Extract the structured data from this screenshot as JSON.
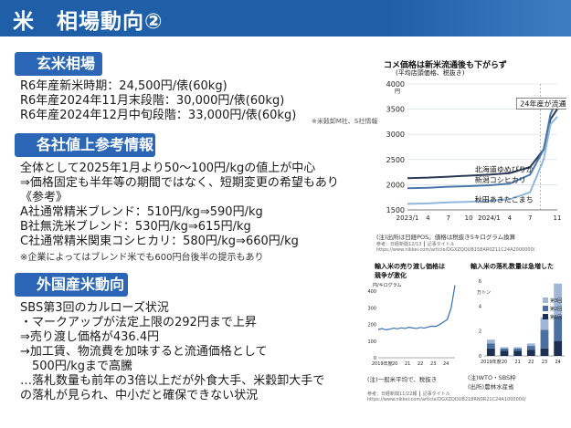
{
  "header": {
    "title": "米　相場動向②"
  },
  "sections": {
    "genmai": {
      "label": "玄米相場",
      "lines": [
        "R6年産新米時期：24,500円/俵(60kg)",
        "R6年産2024年11月末段階：30,000円/俵(60kg)",
        "R6年産2024年12月中旬段階：33,000円/俵(60kg)"
      ],
      "note": "※米穀卸M社、S社情報"
    },
    "price_up": {
      "label": "各社値上参考情報",
      "lines": [
        "全体として2025年1月より50～100円/kgの値上が中心",
        "⇒価格固定も半年等の期間ではなく、短期変更の希望もあり",
        "《参考》",
        "A社通常精米ブレンド：510円/kg⇒590円/kg",
        "B社無洗米ブレンド：530円/kg⇒615円/kg",
        "C社通常精米関東コシヒカリ：580円/kg⇒660円/kg"
      ],
      "note": "※企業によってはブレンド米でも600円台後半の提示もあり"
    },
    "foreign": {
      "label": "外国産米動向",
      "lines": [
        "SBS第3回のカルローズ状況",
        "・マークアップが法定上限の292円まで上昇",
        "⇒売り渡し価格が436.4円",
        "→加工賃、物流費を加味すると流通価格として",
        "　500円/kgまで高騰",
        "…落札数量も前年の3倍以上だが外食大手、米穀卸大手で",
        "の落札が見られ、中小だと確保できない状況"
      ]
    }
  },
  "chart_data": [
    {
      "type": "line",
      "title": "コメ価格は新米流通後も下がらず",
      "subtitle": "(平均店頭価格、税抜き)",
      "ylabel": "円",
      "ylim": [
        1500,
        4000
      ],
      "yticks": [
        "4000",
        "3500",
        "3000",
        "2500",
        "2000",
        "1500"
      ],
      "xticks": [
        "2023/1",
        "4",
        "7",
        "10",
        "2024/1",
        "4",
        "7",
        "11"
      ],
      "annotation": "24年産が流通",
      "source": "(注)出所は日経POS。価格は税抜き5キログラム換算",
      "footer": "参考：日経新聞12/13 ┃ 記事タイトル　https://www.nikkei.com/article/DGXZQOUB158AR0Z11C24A2000000/",
      "grid": true,
      "series": [
        {
          "name": "北海道ゆめぴりか",
          "color": "#2b3a55",
          "x": [
            0,
            3,
            6,
            9,
            12,
            15,
            18,
            20,
            21,
            22
          ],
          "y": [
            2130,
            2140,
            2160,
            2180,
            2200,
            2230,
            2350,
            2700,
            3300,
            3500
          ]
        },
        {
          "name": "新潟コシヒカリ",
          "color": "#4a77a8",
          "x": [
            0,
            3,
            6,
            9,
            12,
            15,
            18,
            20,
            21,
            22
          ],
          "y": [
            1930,
            1940,
            1960,
            1970,
            1990,
            2020,
            2200,
            2700,
            3400,
            3700
          ]
        },
        {
          "name": "秋田あきたこまち",
          "color": "#8fb7dc",
          "x": [
            0,
            3,
            6,
            9,
            12,
            15,
            18,
            20,
            21,
            22
          ],
          "y": [
            1620,
            1630,
            1650,
            1660,
            1680,
            1710,
            1850,
            2500,
            3200,
            3350
          ]
        }
      ]
    },
    {
      "type": "line",
      "title": "輸入米の売り渡し価格は\n競争が激化",
      "ylabel": "円/キログラム",
      "ylim": [
        0,
        450
      ],
      "yticks": [
        "400",
        "300",
        "200",
        "100",
        "0"
      ],
      "xticks": [
        "2019年度",
        "20",
        "21",
        "22",
        "23",
        "24"
      ],
      "source": "(注)一般米平均で、税抜き",
      "series": [
        {
          "name": "",
          "color": "#3a6fb0",
          "x": [
            0,
            1,
            2,
            3,
            4,
            5,
            6,
            7,
            8,
            9,
            10,
            11,
            12,
            13,
            14,
            15,
            16,
            17,
            18,
            19,
            20
          ],
          "y": [
            170,
            175,
            168,
            172,
            178,
            174,
            180,
            176,
            183,
            179,
            176,
            182,
            178,
            185,
            190,
            188,
            200,
            215,
            230,
            300,
            436
          ]
        }
      ]
    },
    {
      "type": "bar",
      "title": "輸入米の落札数量は急増した",
      "ylabel": "万トン",
      "ylim": [
        0,
        6
      ],
      "yticks": [
        "6",
        "4",
        "2",
        "0"
      ],
      "categories": [
        "2019年度",
        "20",
        "21",
        "22",
        "23",
        "24"
      ],
      "source": "(注)WTO・SBS枠\n(出所)農林水産省",
      "legend": [
        "第3回",
        "第2回",
        "第1回"
      ],
      "colors": [
        "#9fb6d6",
        "#4a6fa0",
        "#1d2f52"
      ],
      "series": [
        {
          "name": "第1回",
          "values": [
            0.6,
            0.4,
            0.4,
            0.5,
            0.6,
            1.2
          ]
        },
        {
          "name": "第2回",
          "values": [
            0.4,
            0.2,
            0.2,
            0.3,
            1.5,
            2.0
          ]
        },
        {
          "name": "第3回",
          "values": [
            0.3,
            0.1,
            0.1,
            0.2,
            1.0,
            2.6
          ]
        }
      ],
      "footer": "参考：日経新聞11/22報 ┃ 記事タイトル　https://www.nikkei.com/article/DGXZQOUB218RN0R21C24A1000000/"
    }
  ]
}
